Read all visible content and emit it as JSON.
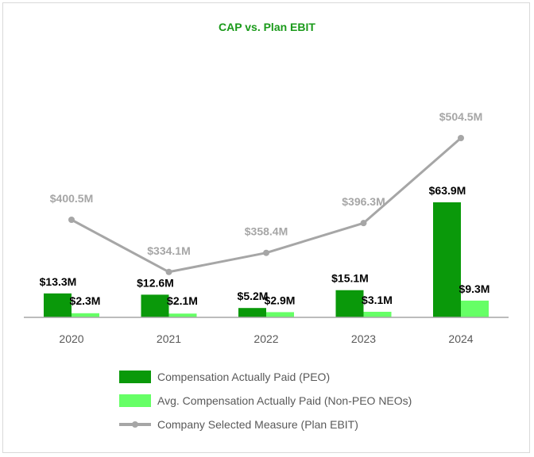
{
  "chart_data": {
    "type": "bar+line",
    "title": "CAP vs. Plan EBIT",
    "categories": [
      "2020",
      "2021",
      "2022",
      "2023",
      "2024"
    ],
    "series": [
      {
        "name": "Compensation Actually Paid (PEO)",
        "kind": "bar",
        "color": "#0a990a",
        "values": [
          13.3,
          12.6,
          5.2,
          15.1,
          63.9
        ],
        "labels": [
          "$13.3M",
          "$12.6M",
          "$5.2M",
          "$15.1M",
          "$63.9M"
        ]
      },
      {
        "name": "Avg. Compensation Actually Paid (Non-PEO NEOs)",
        "kind": "bar",
        "color": "#66ff66",
        "values": [
          2.3,
          2.1,
          2.9,
          3.1,
          9.3
        ],
        "labels": [
          "$2.3M",
          "$2.1M",
          "$2.9M",
          "$3.1M",
          "$9.3M"
        ]
      },
      {
        "name": "Company Selected Measure (Plan EBIT)",
        "kind": "line",
        "color": "#a6a6a6",
        "values": [
          400.5,
          334.1,
          358.4,
          396.3,
          504.5
        ],
        "labels": [
          "$400.5M",
          "$334.1M",
          "$358.4M",
          "$396.3M",
          "$504.5M"
        ]
      }
    ],
    "bar_ylim": [
      0,
      80
    ],
    "line_ylim": [
      290,
      540
    ],
    "legend_position": "bottom",
    "grid": false
  }
}
